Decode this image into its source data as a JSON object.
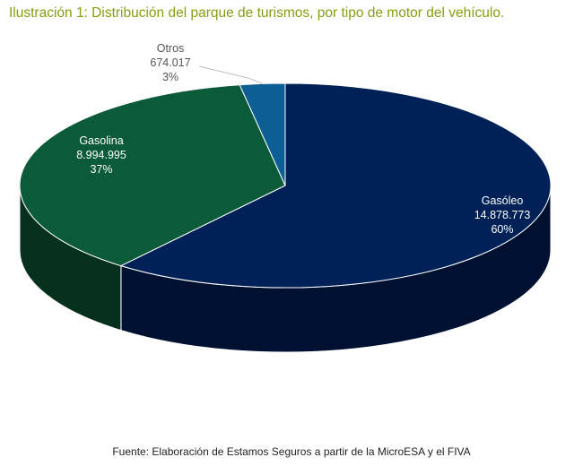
{
  "title": "Ilustración 1: Distribución del parque de turismos, por tipo de motor del vehículo.",
  "source": "Fuente: Elaboración de Estamos Seguros a partir de la MicroESA y el FIVA",
  "chart_data": {
    "type": "pie",
    "title": "Ilustración 1: Distribución del parque de turismos, por tipo de motor del vehículo.",
    "style": "3d",
    "slices": [
      {
        "name": "Gasóleo",
        "value": 14878773,
        "value_label": "14.878.773",
        "percent": 60,
        "percent_label": "60%",
        "color": "#002157",
        "side_color": "#001030",
        "text_color": "#ffffff"
      },
      {
        "name": "Gasolina",
        "value": 8994995,
        "value_label": "8.994.995",
        "percent": 37,
        "percent_label": "37%",
        "color": "#0b5a39",
        "side_color": "#05301e",
        "text_color": "#ffffff"
      },
      {
        "name": "Otros",
        "value": 674017,
        "value_label": "674.017",
        "percent": 3,
        "percent_label": "3%",
        "color": "#0c5f95",
        "side_color": "#06324f",
        "text_color": "#555555"
      }
    ]
  }
}
